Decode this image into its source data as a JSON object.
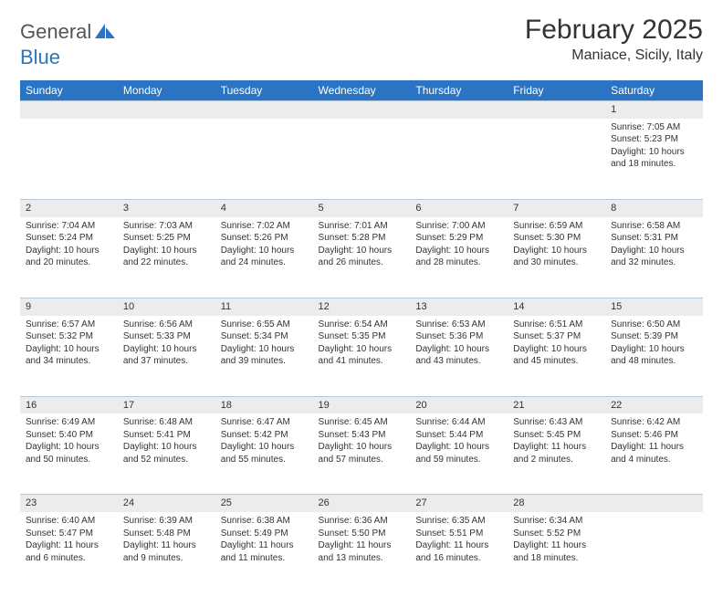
{
  "brand": {
    "part1": "General",
    "part2": "Blue"
  },
  "title": "February 2025",
  "location": "Maniace, Sicily, Italy",
  "header_bg": "#2b74c3",
  "daynum_bg": "#ececec",
  "dow": [
    "Sunday",
    "Monday",
    "Tuesday",
    "Wednesday",
    "Thursday",
    "Friday",
    "Saturday"
  ],
  "weeks": [
    [
      null,
      null,
      null,
      null,
      null,
      null,
      {
        "n": "1",
        "sr": "Sunrise: 7:05 AM",
        "ss": "Sunset: 5:23 PM",
        "d1": "Daylight: 10 hours",
        "d2": "and 18 minutes."
      }
    ],
    [
      {
        "n": "2",
        "sr": "Sunrise: 7:04 AM",
        "ss": "Sunset: 5:24 PM",
        "d1": "Daylight: 10 hours",
        "d2": "and 20 minutes."
      },
      {
        "n": "3",
        "sr": "Sunrise: 7:03 AM",
        "ss": "Sunset: 5:25 PM",
        "d1": "Daylight: 10 hours",
        "d2": "and 22 minutes."
      },
      {
        "n": "4",
        "sr": "Sunrise: 7:02 AM",
        "ss": "Sunset: 5:26 PM",
        "d1": "Daylight: 10 hours",
        "d2": "and 24 minutes."
      },
      {
        "n": "5",
        "sr": "Sunrise: 7:01 AM",
        "ss": "Sunset: 5:28 PM",
        "d1": "Daylight: 10 hours",
        "d2": "and 26 minutes."
      },
      {
        "n": "6",
        "sr": "Sunrise: 7:00 AM",
        "ss": "Sunset: 5:29 PM",
        "d1": "Daylight: 10 hours",
        "d2": "and 28 minutes."
      },
      {
        "n": "7",
        "sr": "Sunrise: 6:59 AM",
        "ss": "Sunset: 5:30 PM",
        "d1": "Daylight: 10 hours",
        "d2": "and 30 minutes."
      },
      {
        "n": "8",
        "sr": "Sunrise: 6:58 AM",
        "ss": "Sunset: 5:31 PM",
        "d1": "Daylight: 10 hours",
        "d2": "and 32 minutes."
      }
    ],
    [
      {
        "n": "9",
        "sr": "Sunrise: 6:57 AM",
        "ss": "Sunset: 5:32 PM",
        "d1": "Daylight: 10 hours",
        "d2": "and 34 minutes."
      },
      {
        "n": "10",
        "sr": "Sunrise: 6:56 AM",
        "ss": "Sunset: 5:33 PM",
        "d1": "Daylight: 10 hours",
        "d2": "and 37 minutes."
      },
      {
        "n": "11",
        "sr": "Sunrise: 6:55 AM",
        "ss": "Sunset: 5:34 PM",
        "d1": "Daylight: 10 hours",
        "d2": "and 39 minutes."
      },
      {
        "n": "12",
        "sr": "Sunrise: 6:54 AM",
        "ss": "Sunset: 5:35 PM",
        "d1": "Daylight: 10 hours",
        "d2": "and 41 minutes."
      },
      {
        "n": "13",
        "sr": "Sunrise: 6:53 AM",
        "ss": "Sunset: 5:36 PM",
        "d1": "Daylight: 10 hours",
        "d2": "and 43 minutes."
      },
      {
        "n": "14",
        "sr": "Sunrise: 6:51 AM",
        "ss": "Sunset: 5:37 PM",
        "d1": "Daylight: 10 hours",
        "d2": "and 45 minutes."
      },
      {
        "n": "15",
        "sr": "Sunrise: 6:50 AM",
        "ss": "Sunset: 5:39 PM",
        "d1": "Daylight: 10 hours",
        "d2": "and 48 minutes."
      }
    ],
    [
      {
        "n": "16",
        "sr": "Sunrise: 6:49 AM",
        "ss": "Sunset: 5:40 PM",
        "d1": "Daylight: 10 hours",
        "d2": "and 50 minutes."
      },
      {
        "n": "17",
        "sr": "Sunrise: 6:48 AM",
        "ss": "Sunset: 5:41 PM",
        "d1": "Daylight: 10 hours",
        "d2": "and 52 minutes."
      },
      {
        "n": "18",
        "sr": "Sunrise: 6:47 AM",
        "ss": "Sunset: 5:42 PM",
        "d1": "Daylight: 10 hours",
        "d2": "and 55 minutes."
      },
      {
        "n": "19",
        "sr": "Sunrise: 6:45 AM",
        "ss": "Sunset: 5:43 PM",
        "d1": "Daylight: 10 hours",
        "d2": "and 57 minutes."
      },
      {
        "n": "20",
        "sr": "Sunrise: 6:44 AM",
        "ss": "Sunset: 5:44 PM",
        "d1": "Daylight: 10 hours",
        "d2": "and 59 minutes."
      },
      {
        "n": "21",
        "sr": "Sunrise: 6:43 AM",
        "ss": "Sunset: 5:45 PM",
        "d1": "Daylight: 11 hours",
        "d2": "and 2 minutes."
      },
      {
        "n": "22",
        "sr": "Sunrise: 6:42 AM",
        "ss": "Sunset: 5:46 PM",
        "d1": "Daylight: 11 hours",
        "d2": "and 4 minutes."
      }
    ],
    [
      {
        "n": "23",
        "sr": "Sunrise: 6:40 AM",
        "ss": "Sunset: 5:47 PM",
        "d1": "Daylight: 11 hours",
        "d2": "and 6 minutes."
      },
      {
        "n": "24",
        "sr": "Sunrise: 6:39 AM",
        "ss": "Sunset: 5:48 PM",
        "d1": "Daylight: 11 hours",
        "d2": "and 9 minutes."
      },
      {
        "n": "25",
        "sr": "Sunrise: 6:38 AM",
        "ss": "Sunset: 5:49 PM",
        "d1": "Daylight: 11 hours",
        "d2": "and 11 minutes."
      },
      {
        "n": "26",
        "sr": "Sunrise: 6:36 AM",
        "ss": "Sunset: 5:50 PM",
        "d1": "Daylight: 11 hours",
        "d2": "and 13 minutes."
      },
      {
        "n": "27",
        "sr": "Sunrise: 6:35 AM",
        "ss": "Sunset: 5:51 PM",
        "d1": "Daylight: 11 hours",
        "d2": "and 16 minutes."
      },
      {
        "n": "28",
        "sr": "Sunrise: 6:34 AM",
        "ss": "Sunset: 5:52 PM",
        "d1": "Daylight: 11 hours",
        "d2": "and 18 minutes."
      },
      null
    ]
  ]
}
